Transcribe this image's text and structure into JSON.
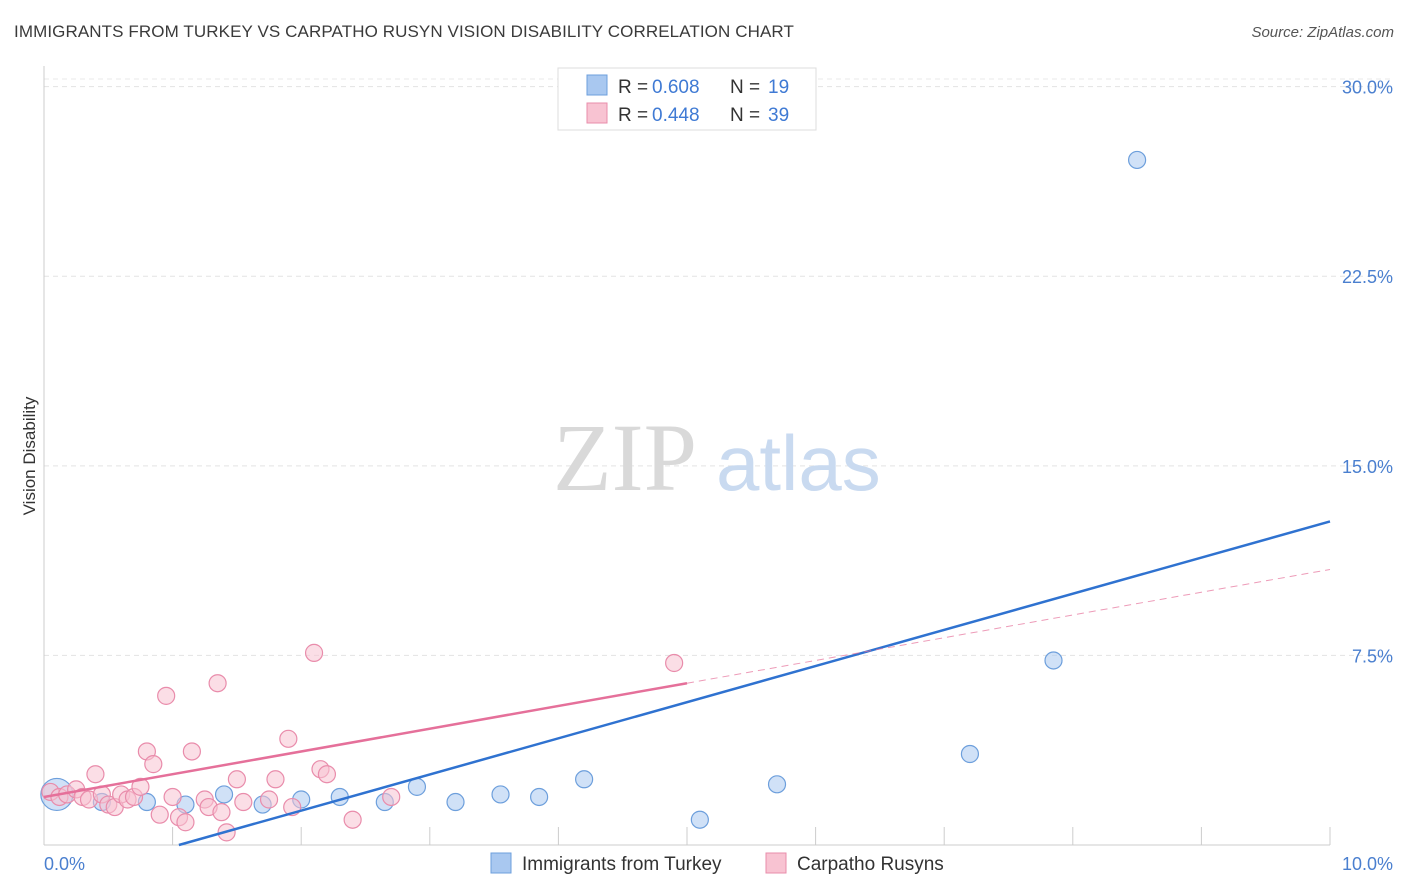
{
  "title": "IMMIGRANTS FROM TURKEY VS CARPATHO RUSYN VISION DISABILITY CORRELATION CHART",
  "source": "Source: ZipAtlas.com",
  "watermark": {
    "zip": "ZIP",
    "atlas": "atlas"
  },
  "legend": {
    "r_label": "R =",
    "n_label": "N =",
    "rows": [
      {
        "r": "0.608",
        "n": "19",
        "color": "#a9c8f0",
        "stroke": "#6d9fdc"
      },
      {
        "r": "0.448",
        "n": "39",
        "color": "#f8c3d2",
        "stroke": "#e98cab"
      }
    ]
  },
  "chart_data": {
    "type": "scatter",
    "title": "IMMIGRANTS FROM TURKEY VS CARPATHO RUSYN VISION DISABILITY CORRELATION CHART",
    "xlabel": "",
    "ylabel": "Vision Disability",
    "xlim": [
      0,
      10
    ],
    "ylim": [
      0,
      30.5
    ],
    "x_tick_labels": [
      "0.0%",
      "10.0%"
    ],
    "y_ticks": [
      7.5,
      15.0,
      22.5,
      30.0
    ],
    "y_tick_labels": [
      "7.5%",
      "15.0%",
      "22.5%",
      "30.0%"
    ],
    "grid": true,
    "series": [
      {
        "name": "Immigrants from Turkey",
        "color": "#a9c8f0",
        "stroke": "#6d9fdc",
        "line_color": "#2f72d0",
        "trend": {
          "x": [
            0.0,
            10.0
          ],
          "y": [
            -1.5,
            12.8
          ]
        },
        "points": [
          {
            "x": 0.1,
            "y": 2.0,
            "big": true
          },
          {
            "x": 0.45,
            "y": 1.7
          },
          {
            "x": 0.8,
            "y": 1.7
          },
          {
            "x": 1.1,
            "y": 1.6
          },
          {
            "x": 1.4,
            "y": 2.0
          },
          {
            "x": 1.7,
            "y": 1.6
          },
          {
            "x": 2.0,
            "y": 1.8
          },
          {
            "x": 2.3,
            "y": 1.9
          },
          {
            "x": 2.65,
            "y": 1.7
          },
          {
            "x": 2.9,
            "y": 2.3
          },
          {
            "x": 3.2,
            "y": 1.7
          },
          {
            "x": 3.55,
            "y": 2.0
          },
          {
            "x": 3.85,
            "y": 1.9
          },
          {
            "x": 4.2,
            "y": 2.6
          },
          {
            "x": 5.1,
            "y": 1.0
          },
          {
            "x": 5.7,
            "y": 2.4
          },
          {
            "x": 7.2,
            "y": 3.6
          },
          {
            "x": 7.85,
            "y": 7.3
          },
          {
            "x": 8.5,
            "y": 27.1
          }
        ]
      },
      {
        "name": "Carpatho Rusyns",
        "color": "#f8c3d2",
        "stroke": "#e98cab",
        "line_color": "#e5709a",
        "trend": {
          "x": [
            0.0,
            5.0
          ],
          "y": [
            1.9,
            6.4
          ]
        },
        "trend_ext": {
          "x": [
            5.0,
            10.0
          ],
          "y": [
            6.4,
            10.9
          ]
        },
        "points": [
          {
            "x": 0.05,
            "y": 2.1
          },
          {
            "x": 0.12,
            "y": 1.9
          },
          {
            "x": 0.18,
            "y": 2.0
          },
          {
            "x": 0.25,
            "y": 2.2
          },
          {
            "x": 0.3,
            "y": 1.9
          },
          {
            "x": 0.35,
            "y": 1.8
          },
          {
            "x": 0.4,
            "y": 2.8
          },
          {
            "x": 0.45,
            "y": 2.0
          },
          {
            "x": 0.5,
            "y": 1.6
          },
          {
            "x": 0.55,
            "y": 1.5
          },
          {
            "x": 0.6,
            "y": 2.0
          },
          {
            "x": 0.65,
            "y": 1.8
          },
          {
            "x": 0.7,
            "y": 1.9
          },
          {
            "x": 0.75,
            "y": 2.3
          },
          {
            "x": 0.8,
            "y": 3.7
          },
          {
            "x": 0.85,
            "y": 3.2
          },
          {
            "x": 0.9,
            "y": 1.2
          },
          {
            "x": 0.95,
            "y": 5.9
          },
          {
            "x": 1.0,
            "y": 1.9
          },
          {
            "x": 1.05,
            "y": 1.1
          },
          {
            "x": 1.1,
            "y": 0.9
          },
          {
            "x": 1.15,
            "y": 3.7
          },
          {
            "x": 1.25,
            "y": 1.8
          },
          {
            "x": 1.28,
            "y": 1.5
          },
          {
            "x": 1.35,
            "y": 6.4
          },
          {
            "x": 1.38,
            "y": 1.3
          },
          {
            "x": 1.42,
            "y": 0.5
          },
          {
            "x": 1.5,
            "y": 2.6
          },
          {
            "x": 1.55,
            "y": 1.7
          },
          {
            "x": 1.75,
            "y": 1.8
          },
          {
            "x": 1.8,
            "y": 2.6
          },
          {
            "x": 1.9,
            "y": 4.2
          },
          {
            "x": 1.93,
            "y": 1.5
          },
          {
            "x": 2.1,
            "y": 7.6
          },
          {
            "x": 2.15,
            "y": 3.0
          },
          {
            "x": 2.2,
            "y": 2.8
          },
          {
            "x": 2.4,
            "y": 1.0
          },
          {
            "x": 2.7,
            "y": 1.9
          },
          {
            "x": 4.9,
            "y": 7.2
          }
        ]
      }
    ]
  }
}
